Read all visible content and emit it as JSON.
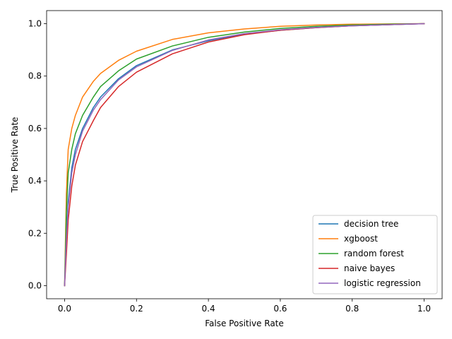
{
  "chart_data": {
    "type": "line",
    "title": "",
    "xlabel": "False Positive Rate",
    "ylabel": "True Positive Rate",
    "xlim": [
      -0.05,
      1.05
    ],
    "ylim": [
      -0.05,
      1.05
    ],
    "xticks": [
      0.0,
      0.2,
      0.4,
      0.6,
      0.8,
      1.0
    ],
    "yticks": [
      0.0,
      0.2,
      0.4,
      0.6,
      0.8,
      1.0
    ],
    "xtick_labels": [
      "0.0",
      "0.2",
      "0.4",
      "0.6",
      "0.8",
      "1.0"
    ],
    "ytick_labels": [
      "0.0",
      "0.2",
      "0.4",
      "0.6",
      "0.8",
      "1.0"
    ],
    "grid": false,
    "legend_position": "bottom-right",
    "series": [
      {
        "name": "decision tree",
        "color": "#1f77b4",
        "x": [
          0.0,
          0.005,
          0.01,
          0.02,
          0.03,
          0.05,
          0.08,
          0.1,
          0.15,
          0.2,
          0.3,
          0.4,
          0.5,
          0.6,
          0.7,
          0.8,
          0.9,
          1.0
        ],
        "y": [
          0.0,
          0.2,
          0.32,
          0.45,
          0.52,
          0.6,
          0.68,
          0.72,
          0.79,
          0.84,
          0.9,
          0.935,
          0.96,
          0.975,
          0.985,
          0.992,
          0.996,
          1.0
        ]
      },
      {
        "name": "xgboost",
        "color": "#ff7f0e",
        "x": [
          0.0,
          0.005,
          0.01,
          0.02,
          0.03,
          0.05,
          0.08,
          0.1,
          0.15,
          0.2,
          0.3,
          0.4,
          0.5,
          0.6,
          0.7,
          0.8,
          0.9,
          1.0
        ],
        "y": [
          0.0,
          0.35,
          0.52,
          0.6,
          0.65,
          0.72,
          0.78,
          0.81,
          0.86,
          0.895,
          0.94,
          0.965,
          0.98,
          0.99,
          0.995,
          0.998,
          0.999,
          1.0
        ]
      },
      {
        "name": "random forest",
        "color": "#2ca02c",
        "x": [
          0.0,
          0.005,
          0.01,
          0.02,
          0.03,
          0.05,
          0.08,
          0.1,
          0.15,
          0.2,
          0.3,
          0.4,
          0.5,
          0.6,
          0.7,
          0.8,
          0.9,
          1.0
        ],
        "y": [
          0.0,
          0.28,
          0.43,
          0.52,
          0.58,
          0.65,
          0.72,
          0.76,
          0.82,
          0.865,
          0.915,
          0.948,
          0.968,
          0.982,
          0.99,
          0.995,
          0.998,
          1.0
        ]
      },
      {
        "name": "naive bayes",
        "color": "#d62728",
        "x": [
          0.0,
          0.005,
          0.01,
          0.02,
          0.03,
          0.05,
          0.08,
          0.1,
          0.15,
          0.2,
          0.3,
          0.4,
          0.5,
          0.6,
          0.7,
          0.8,
          0.9,
          1.0
        ],
        "y": [
          0.0,
          0.12,
          0.25,
          0.38,
          0.46,
          0.55,
          0.63,
          0.68,
          0.76,
          0.815,
          0.885,
          0.93,
          0.958,
          0.975,
          0.985,
          0.992,
          0.996,
          1.0
        ]
      },
      {
        "name": "logistic regression",
        "color": "#9467bd",
        "x": [
          0.0,
          0.005,
          0.01,
          0.02,
          0.03,
          0.05,
          0.08,
          0.1,
          0.15,
          0.2,
          0.3,
          0.4,
          0.5,
          0.6,
          0.7,
          0.8,
          0.9,
          1.0
        ],
        "y": [
          0.0,
          0.18,
          0.3,
          0.43,
          0.5,
          0.59,
          0.67,
          0.71,
          0.785,
          0.835,
          0.898,
          0.938,
          0.962,
          0.977,
          0.986,
          0.992,
          0.996,
          1.0
        ]
      }
    ]
  }
}
